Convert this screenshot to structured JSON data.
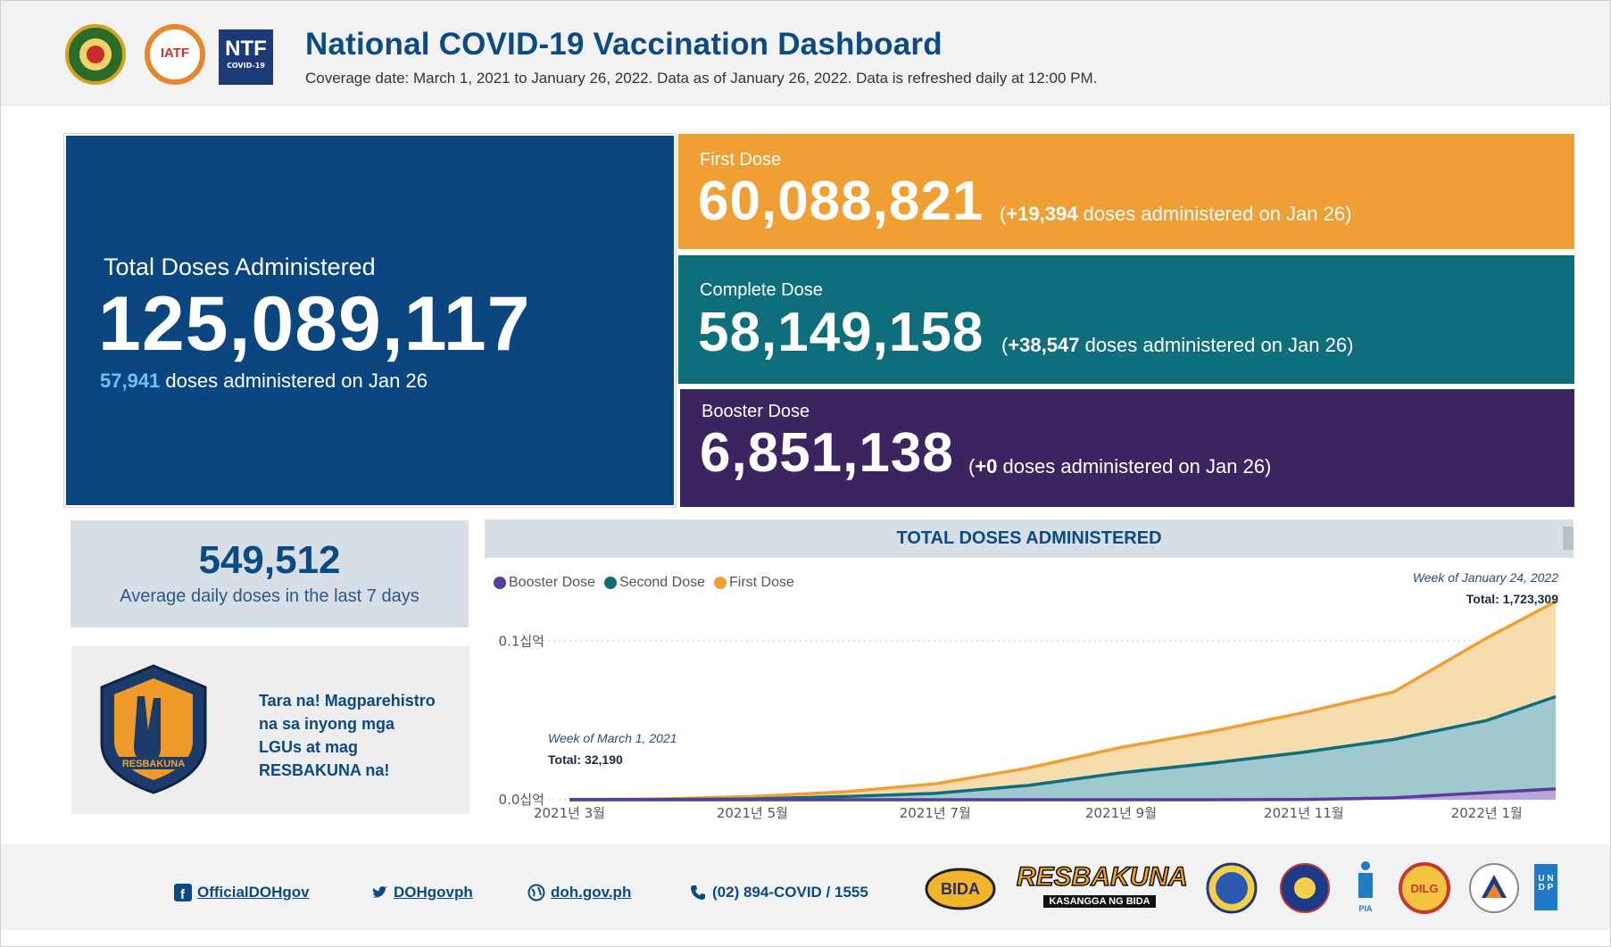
{
  "header": {
    "title": "National COVID-19 Vaccination Dashboard",
    "subtitle": "Coverage date: March 1, 2021 to January 26, 2022. Data as of January 26, 2022. Data is refreshed daily at 12:00 PM.",
    "logos": {
      "iatf": "IATF",
      "ntf": "NTF",
      "ntf_sub": "COVID-19"
    }
  },
  "total": {
    "label": "Total Doses Administered",
    "value": "125,089,117",
    "daily_value": "57,941",
    "daily_text": " doses administered on Jan 26"
  },
  "first_dose": {
    "label": "First Dose",
    "value": "60,088,821",
    "delta_open": "(",
    "delta_value": "+19,394",
    "delta_text": " doses administered on Jan 26)"
  },
  "complete_dose": {
    "label": "Complete Dose",
    "value": "58,149,158",
    "delta_open": "(",
    "delta_value": "+38,547",
    "delta_text": " doses administered on Jan 26)"
  },
  "booster_dose": {
    "label": "Booster Dose",
    "value": "6,851,138",
    "delta_open": "(",
    "delta_value": "+0",
    "delta_text": " doses administered on Jan 26)"
  },
  "average": {
    "value": "549,512",
    "label": "Average daily doses in the last 7 days"
  },
  "promo": {
    "text": "Tara na! Magparehistro na sa inyong mga LGUs at mag RESBAKUNA na!",
    "badge_text": "RESBAKUNA"
  },
  "colors": {
    "navy": "#0b4680",
    "first": "#ef9f33",
    "complete": "#0f6e7c",
    "booster": "#3b2560",
    "first_area": "#f7dcae",
    "second_area": "#9fc8cf",
    "booster_area": "#b9a6d8"
  },
  "chart_data": {
    "type": "area",
    "title": "TOTAL DOSES ADMINISTERED",
    "legend": [
      "Booster Dose",
      "Second Dose",
      "First Dose"
    ],
    "legend_colors": [
      "#5a3d9a",
      "#0f6e7c",
      "#ef9f33"
    ],
    "x_ticks": [
      "2021년 3월",
      "2021년 5월",
      "2021년 7월",
      "2021년 9월",
      "2021년 11월",
      "2022년 1월"
    ],
    "y_ticks": [
      "0.0십억",
      "0.1십억"
    ],
    "y_tick_values": [
      0,
      100000000
    ],
    "ylim": [
      0,
      130000000
    ],
    "x": [
      "2021-03-01",
      "2021-04-01",
      "2021-05-01",
      "2021-06-01",
      "2021-07-01",
      "2021-08-01",
      "2021-09-01",
      "2021-10-01",
      "2021-11-01",
      "2021-12-01",
      "2022-01-01",
      "2022-01-24"
    ],
    "series": [
      {
        "name": "Booster Dose",
        "values": [
          0,
          0,
          0,
          0,
          0,
          0,
          0,
          0,
          100000,
          1200000,
          4500000,
          6800000
        ]
      },
      {
        "name": "Second Dose",
        "values": [
          30000,
          120000,
          500000,
          2000000,
          4000000,
          9000000,
          17000000,
          23000000,
          30000000,
          38000000,
          50000000,
          65000000
        ]
      },
      {
        "name": "First Dose",
        "values": [
          32190,
          500000,
          2000000,
          5000000,
          10000000,
          20000000,
          33000000,
          43000000,
          55000000,
          68000000,
          102000000,
          125000000
        ]
      }
    ],
    "annotations": [
      {
        "week": "Week of March 1, 2021",
        "total": "Total: 32,190"
      },
      {
        "week": "Week of January 24, 2022",
        "total": "Total: 1,723,309"
      }
    ],
    "grid": "dotted horizontal",
    "legend_position": "top-left"
  },
  "footer": {
    "facebook": "OfficialDOHgov",
    "twitter": "DOHgovph",
    "website": "doh.gov.ph",
    "phone": "(02) 894-COVID / 1555",
    "resbakuna": "RESBAKUNA",
    "resbakuna_sub": "KASANGGA NG BIDA",
    "bida": "BIDA",
    "pia": "PIA",
    "dilg": "DILG",
    "undp": "U N D P"
  }
}
